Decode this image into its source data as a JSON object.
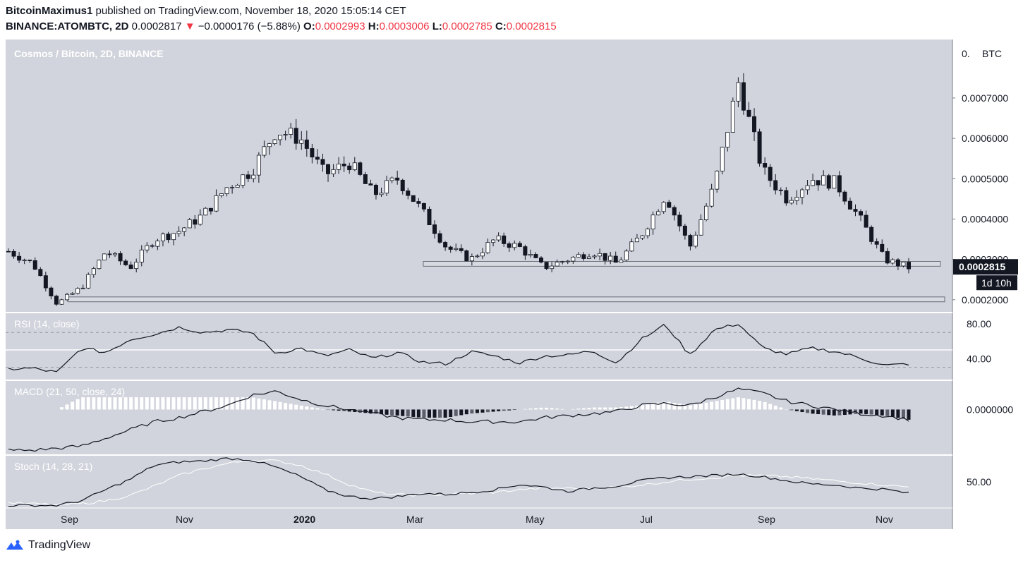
{
  "header": {
    "author": "BitcoinMaximus1",
    "published": " published on TradingView.com, November 18, 2020 15:05:14 CET",
    "symbol": "BINANCE:ATOMBTC, 2D",
    "last": "0.0002817",
    "arrow": "▼",
    "change": "−0.0000176 (−5.88%)",
    "o_label": "O:",
    "o_val": "0.0002993",
    "h_label": "H:",
    "h_val": "0.0003006",
    "l_label": "L:",
    "l_val": "0.0002785",
    "c_label": "C:",
    "c_val": "0.0002815"
  },
  "footer": {
    "brand": "TradingView",
    "logo_icon": "tradingview-logo-icon"
  },
  "colors": {
    "pane_bg": "#d1d4dc",
    "candle_up": "#ffffff",
    "candle_down": "#131722",
    "price_tag": "#131722"
  },
  "chart_data": [
    {
      "type": "candlestick",
      "title": "Cosmos / Bitcoin, 2D, BINANCE",
      "currency_label": "BTC",
      "y_ticks": [
        "0.0002000",
        "0.0003000",
        "0.0004000",
        "0.0005000",
        "0.0006000",
        "0.0007000"
      ],
      "y_top_tick_partial": "0.",
      "ylim": [
        0.00017,
        0.000845
      ],
      "x_ticks": [
        "Sep",
        "Nov",
        "2020",
        "Mar",
        "May",
        "Jul",
        "Sep",
        "Nov"
      ],
      "last_price_label": "0.0002815",
      "countdown_label": "1d 10h",
      "support_zones": [
        {
          "from": "early Mar 2020",
          "low": 0.000283,
          "high": 0.000295
        },
        {
          "from": "early Sep 2019",
          "low": 0.000195,
          "high": 0.000207
        }
      ],
      "close_path": [
        [
          "Aug 2019",
          0.00032
        ],
        [
          "Aug 2019",
          0.00029
        ],
        [
          "Sep 2019",
          0.00019
        ],
        [
          "Sep 2019",
          0.00023
        ],
        [
          "Sep 2019",
          0.00032
        ],
        [
          "Oct 2019",
          0.00028
        ],
        [
          "Oct 2019",
          0.00035
        ],
        [
          "Oct 2019",
          0.00037
        ],
        [
          "Nov 2019",
          0.00041
        ],
        [
          "Nov 2019",
          0.00048
        ],
        [
          "Nov 2019",
          0.00052
        ],
        [
          "Dec 2019",
          0.00062
        ],
        [
          "Dec 2019",
          0.0006
        ],
        [
          "Jan 2020",
          0.00051
        ],
        [
          "Jan 2020",
          0.00054
        ],
        [
          "Feb 2020",
          0.00046
        ],
        [
          "Feb 2020",
          0.0005
        ],
        [
          "Feb 2020",
          0.00042
        ],
        [
          "Mar 2020",
          0.00033
        ],
        [
          "Mar 2020",
          0.0003
        ],
        [
          "Apr 2020",
          0.00035
        ],
        [
          "Apr 2020",
          0.00033
        ],
        [
          "May 2020",
          0.00028
        ],
        [
          "May 2020",
          0.0003
        ],
        [
          "Jun 2020",
          0.00032
        ],
        [
          "Jun 2020",
          0.00029
        ],
        [
          "Jul 2020",
          0.00036
        ],
        [
          "Jul 2020",
          0.00046
        ],
        [
          "Aug 2020",
          0.00033
        ],
        [
          "Aug 2020",
          0.00048
        ],
        [
          "Aug 2020",
          0.00074
        ],
        [
          "Sep 2020",
          0.00052
        ],
        [
          "Sep 2020",
          0.00045
        ],
        [
          "Oct 2020",
          0.0005
        ],
        [
          "Oct 2020",
          0.00049
        ],
        [
          "Oct 2020",
          0.0004
        ],
        [
          "Nov 2020",
          0.0003
        ],
        [
          "Nov 2020",
          0.00028
        ]
      ]
    },
    {
      "type": "line",
      "title": "RSI (14, close)",
      "y_ticks": [
        "80.00",
        "40.00"
      ],
      "ylim": [
        16,
        92
      ],
      "levels": [
        70,
        50,
        30
      ],
      "values": [
        28,
        29,
        24,
        52,
        47,
        62,
        68,
        76,
        70,
        73,
        70,
        46,
        52,
        43,
        50,
        40,
        47,
        36,
        34,
        48,
        43,
        35,
        43,
        44,
        49,
        35,
        62,
        79,
        44,
        73,
        80,
        52,
        45,
        52,
        48,
        41,
        32,
        34
      ]
    },
    {
      "type": "line",
      "title": "MACD (21, 50, close, 24)",
      "y_ticks": [
        "0.0000000"
      ],
      "ylim": [
        -0.00011,
        7e-05
      ],
      "values": [
        -0.0001,
        -0.0001,
        -9.5e-05,
        -9e-05,
        -7e-05,
        -5e-05,
        -3e-05,
        -2e-05,
        -5e-06,
        1e-05,
        3.5e-05,
        4.5e-05,
        2.5e-05,
        1e-05,
        0.0,
        -1e-05,
        -2e-05,
        -2.5e-05,
        -2.5e-05,
        -3e-05,
        -3e-05,
        -3e-05,
        -2e-05,
        -1.5e-05,
        -1e-05,
        -5e-06,
        1e-05,
        1.5e-05,
        1e-05,
        3e-05,
        5e-05,
        4e-05,
        2e-05,
        1e-05,
        0.0,
        -1e-05,
        -1.5e-05,
        -2.5e-05
      ],
      "histogram": [
        0.0,
        0.0,
        0.0,
        3e-05,
        3e-05,
        3e-05,
        3e-05,
        3e-05,
        3e-05,
        3e-05,
        3e-05,
        2e-05,
        1e-05,
        0.0,
        -5e-06,
        -1e-05,
        -1.5e-05,
        -2e-05,
        -2e-05,
        -1e-05,
        -5e-06,
        0.0,
        5e-06,
        0.0,
        5e-06,
        5e-06,
        1e-05,
        2e-05,
        1e-05,
        2e-05,
        3e-05,
        2e-05,
        0.0,
        -1e-05,
        -1.5e-05,
        -1e-05,
        -1.5e-05,
        -2.5e-05
      ]
    },
    {
      "type": "line",
      "title": "Stoch (14, 28, 21)",
      "y_ticks": [
        "50.00"
      ],
      "ylim": [
        0,
        100
      ],
      "k_values": [
        5,
        5,
        5,
        14,
        35,
        55,
        82,
        88,
        90,
        95,
        92,
        78,
        60,
        35,
        22,
        18,
        22,
        28,
        26,
        30,
        35,
        45,
        40,
        32,
        38,
        42,
        52,
        58,
        60,
        62,
        65,
        60,
        52,
        46,
        44,
        38,
        36,
        28
      ],
      "d_values": [
        10,
        8,
        6,
        8,
        14,
        24,
        42,
        62,
        75,
        85,
        92,
        90,
        82,
        65,
        45,
        30,
        25,
        25,
        26,
        28,
        30,
        35,
        38,
        38,
        38,
        40,
        44,
        50,
        55,
        58,
        62,
        62,
        60,
        56,
        52,
        48,
        44,
        40
      ]
    }
  ]
}
